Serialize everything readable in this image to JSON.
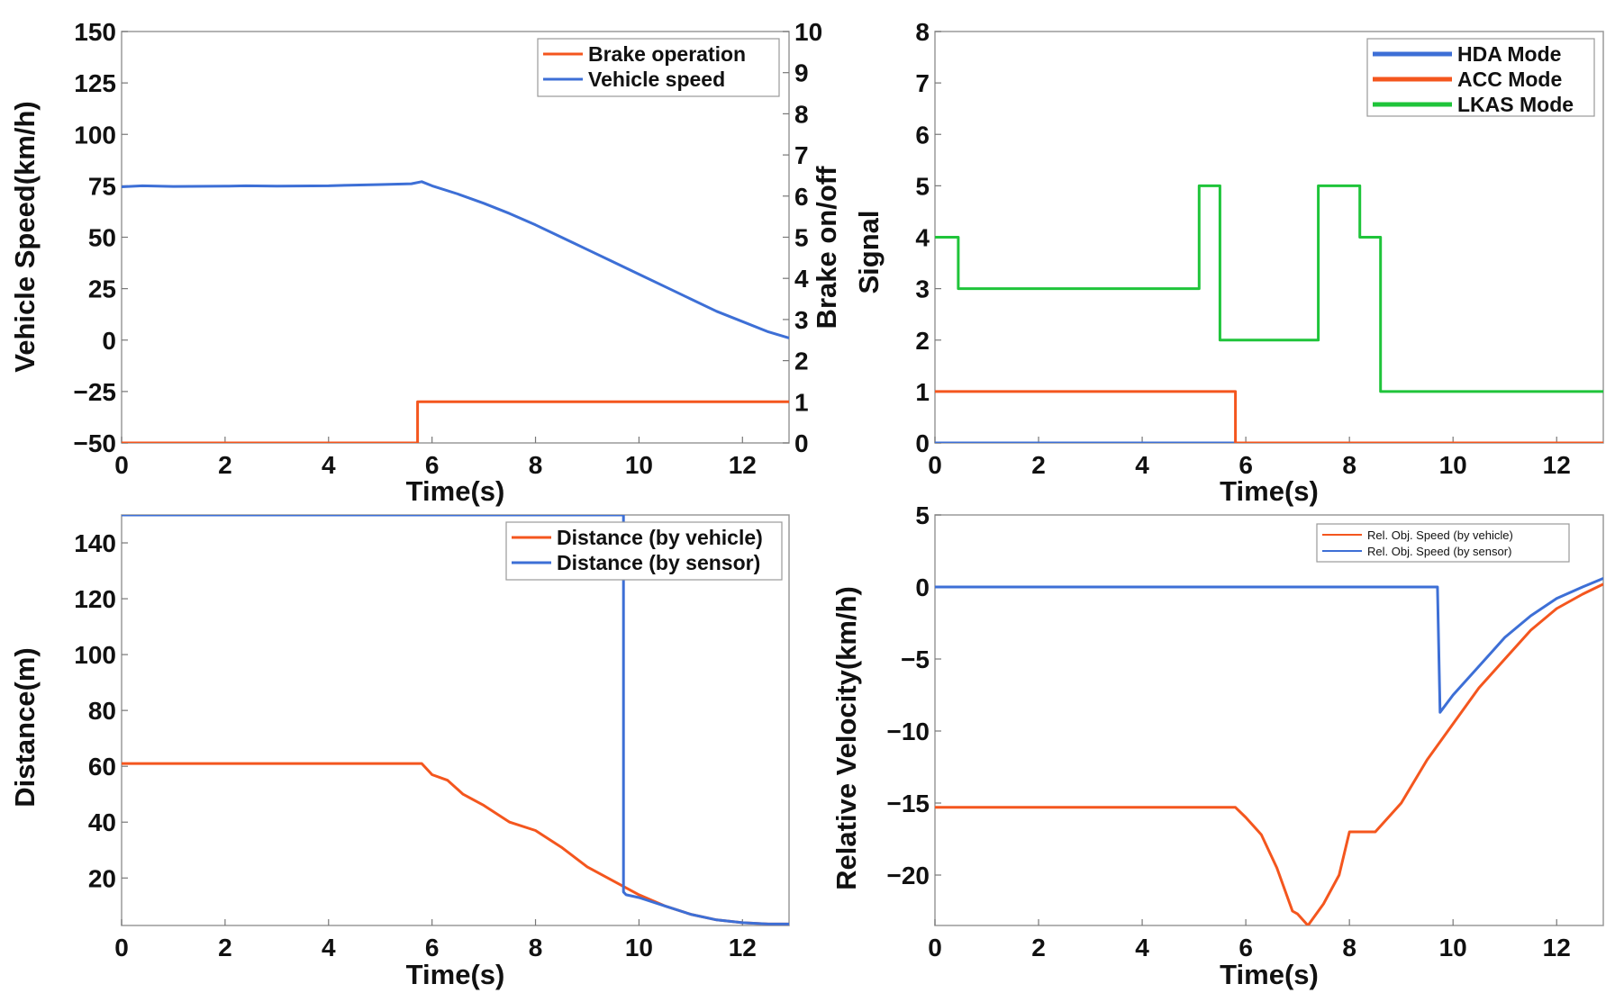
{
  "chart_data": [
    {
      "id": "brake",
      "type": "line",
      "xlabel": "Time(s)",
      "ylabel": "Vehicle Speed(km/h)",
      "y2label": "Brake on/off",
      "xlim": [
        0,
        12.9
      ],
      "ylim": [
        -50,
        150
      ],
      "y2lim": [
        0,
        10
      ],
      "xticks": [
        0,
        2,
        4,
        6,
        8,
        10,
        12
      ],
      "yticks": [
        -50,
        -25,
        0,
        25,
        50,
        75,
        100,
        125,
        150
      ],
      "y2ticks": [
        0,
        1,
        2,
        3,
        4,
        5,
        6,
        7,
        8,
        9,
        10
      ],
      "xtick_labels": [
        "0",
        "2",
        "4",
        "6",
        "8",
        "10",
        "12"
      ],
      "ytick_labels": [
        "−50",
        "−25",
        "0",
        "25",
        "50",
        "75",
        "100",
        "125",
        "150"
      ],
      "y2tick_labels": [
        "0",
        "1",
        "2",
        "3",
        "4",
        "5",
        "6",
        "7",
        "8",
        "9",
        "10"
      ],
      "legend": [
        "Brake operation",
        "Vehicle speed"
      ],
      "legend_position": "top-right",
      "series": [
        {
          "name": "Brake operation",
          "axis": "right",
          "color": "#f4561e",
          "x": [
            0,
            5.72,
            5.72,
            12.9
          ],
          "y": [
            0,
            0,
            1,
            1
          ]
        },
        {
          "name": "Vehicle speed",
          "axis": "left",
          "color": "#3d6fd6",
          "x": [
            0,
            0.4,
            1,
            2,
            2.4,
            3,
            4,
            4.4,
            5,
            5.6,
            5.8,
            6,
            6.5,
            7,
            7.5,
            8,
            8.5,
            9,
            9.5,
            10,
            10.5,
            11,
            11.5,
            12,
            12.5,
            12.9
          ],
          "y": [
            74.5,
            75,
            74.7,
            74.8,
            75,
            74.8,
            75,
            75.3,
            75.6,
            76,
            77,
            75,
            71,
            66.5,
            61.5,
            56,
            50,
            44,
            38,
            32,
            26,
            20,
            14,
            9,
            4,
            1
          ]
        }
      ]
    },
    {
      "id": "modes",
      "type": "line",
      "xlabel": "Time(s)",
      "ylabel": "Signal",
      "xlim": [
        0,
        12.9
      ],
      "ylim": [
        0,
        8
      ],
      "xticks": [
        0,
        2,
        4,
        6,
        8,
        10,
        12
      ],
      "yticks": [
        0,
        1,
        2,
        3,
        4,
        5,
        6,
        7,
        8
      ],
      "xtick_labels": [
        "0",
        "2",
        "4",
        "6",
        "8",
        "10",
        "12"
      ],
      "ytick_labels": [
        "0",
        "1",
        "2",
        "3",
        "4",
        "5",
        "6",
        "7",
        "8"
      ],
      "legend": [
        "HDA Mode",
        "ACC Mode",
        "LKAS Mode"
      ],
      "legend_position": "top-right",
      "series": [
        {
          "name": "HDA Mode",
          "color": "#3d6fd6",
          "x": [
            0,
            12.9
          ],
          "y": [
            0,
            0
          ]
        },
        {
          "name": "ACC Mode",
          "color": "#f4561e",
          "x": [
            0,
            5.8,
            5.8,
            12.9
          ],
          "y": [
            1,
            1,
            0,
            0
          ]
        },
        {
          "name": "LKAS Mode",
          "color": "#1fc43a",
          "x": [
            0,
            0.45,
            0.45,
            5.1,
            5.1,
            5.4,
            5.4,
            5.5,
            5.5,
            7.4,
            7.4,
            8.2,
            8.2,
            8.6,
            8.6,
            12.9
          ],
          "y": [
            4,
            4,
            3,
            3,
            5,
            5,
            5,
            5,
            2,
            2,
            5,
            5,
            4,
            4,
            1,
            1
          ]
        }
      ]
    },
    {
      "id": "distance",
      "type": "line",
      "xlabel": "Time(s)",
      "ylabel": "Distance(m)",
      "xlim": [
        0,
        12.9
      ],
      "ylim": [
        3,
        150
      ],
      "xticks": [
        0,
        2,
        4,
        6,
        8,
        10,
        12
      ],
      "yticks": [
        20,
        40,
        60,
        80,
        100,
        120,
        140
      ],
      "xtick_labels": [
        "0",
        "2",
        "4",
        "6",
        "8",
        "10",
        "12"
      ],
      "ytick_labels": [
        "20",
        "40",
        "60",
        "80",
        "100",
        "120",
        "140"
      ],
      "legend": [
        "Distance (by vehicle)",
        "Distance (by sensor)"
      ],
      "legend_position": "top-right",
      "series": [
        {
          "name": "Distance (by vehicle)",
          "color": "#f4561e",
          "x": [
            0,
            1,
            2,
            3,
            4,
            5,
            5.8,
            6,
            6.3,
            6.6,
            7,
            7.5,
            8,
            8.5,
            9,
            9.5,
            10,
            10.5,
            11,
            11.5,
            12,
            12.5,
            12.9
          ],
          "y": [
            61,
            61,
            61,
            61,
            61,
            61,
            61,
            57,
            55,
            50,
            46,
            40,
            37,
            31,
            24,
            19,
            14,
            10,
            7,
            5,
            4,
            3.5,
            3.5
          ]
        },
        {
          "name": "Distance (by sensor)",
          "color": "#3d6fd6",
          "x": [
            0,
            9.7,
            9.7,
            9.7,
            9.75,
            10,
            10.5,
            11,
            11.5,
            12,
            12.5,
            12.9
          ],
          "y": [
            150,
            150,
            150,
            15,
            14,
            13,
            10,
            7,
            5,
            4,
            3.5,
            3.5
          ]
        }
      ]
    },
    {
      "id": "relvel",
      "type": "line",
      "xlabel": "Time(s)",
      "ylabel": "Relative Velocity(km/h)",
      "xlim": [
        0,
        12.9
      ],
      "ylim": [
        -23.5,
        5
      ],
      "xticks": [
        0,
        2,
        4,
        6,
        8,
        10,
        12
      ],
      "yticks": [
        -20,
        -15,
        -10,
        -5,
        0,
        5
      ],
      "xtick_labels": [
        "0",
        "2",
        "4",
        "6",
        "8",
        "10",
        "12"
      ],
      "ytick_labels": [
        "−20",
        "−15",
        "−10",
        "−5",
        "0",
        "5"
      ],
      "legend": [
        "Rel. Obj. Speed (by vehicle)",
        "Rel. Obj. Speed (by sensor)"
      ],
      "legend_position": "top-right",
      "series": [
        {
          "name": "Rel. Obj. Speed (by vehicle)",
          "color": "#f4561e",
          "x": [
            0,
            2,
            4,
            5.8,
            6,
            6.3,
            6.6,
            6.9,
            7,
            7.2,
            7.5,
            7.8,
            8,
            8.5,
            9,
            9.5,
            10,
            10.5,
            11,
            11.5,
            12,
            12.5,
            12.9
          ],
          "y": [
            -15.3,
            -15.3,
            -15.3,
            -15.3,
            -16,
            -17.2,
            -19.5,
            -22.5,
            -22.7,
            -23.5,
            -22,
            -20,
            -17,
            -17,
            -15,
            -12,
            -9.5,
            -7,
            -5,
            -3,
            -1.5,
            -0.5,
            0.2
          ]
        },
        {
          "name": "Rel. Obj. Speed (by sensor)",
          "color": "#3d6fd6",
          "x": [
            0,
            9.7,
            9.75,
            10,
            10.5,
            11,
            11.5,
            12,
            12.5,
            12.9
          ],
          "y": [
            0,
            0,
            -8.7,
            -7.5,
            -5.5,
            -3.5,
            -2,
            -0.8,
            0,
            0.6
          ]
        }
      ]
    }
  ]
}
